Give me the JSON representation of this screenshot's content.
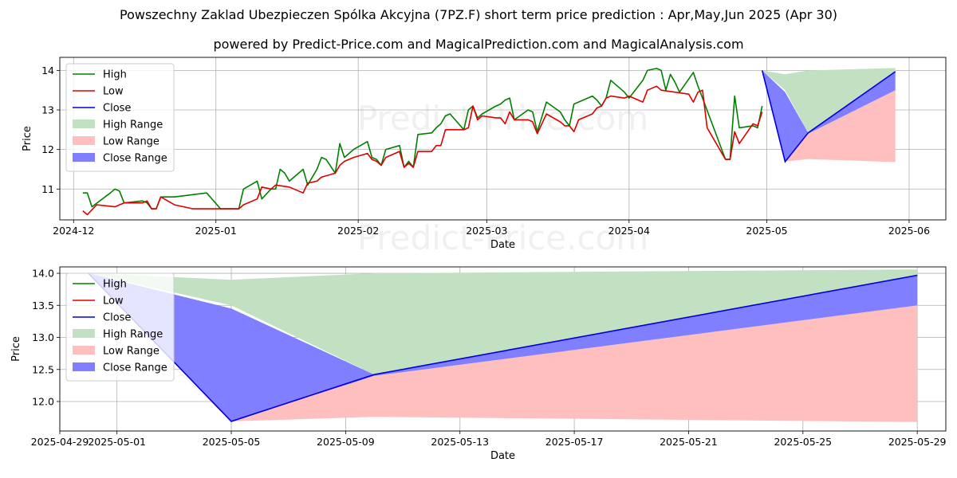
{
  "title": "Powszechny Zaklad Ubezpieczen Spólka Akcyjna (7PZ.F) short term price prediction : Apr,May,Jun 2025 (Apr 30)",
  "subtitle": "powered by Predict-Price.com and MagicalPrediction.com and MagicalAnalysis.com",
  "watermark": "Predict-Price.com",
  "colors": {
    "high": "#008000",
    "low": "#dd0000",
    "close": "#0000dd",
    "high_range": "#c2e0c2",
    "low_range": "#ffbfbf",
    "close_range": "#7f7fff"
  },
  "chart_data": [
    {
      "type": "line",
      "xlabel": "Date",
      "ylabel": "Price",
      "xlim": [
        "2024-11-28",
        "2025-06-09"
      ],
      "ylim": [
        10.22,
        14.33
      ],
      "grid": true,
      "legend_position": "top-left",
      "xticks": [
        "2024-12",
        "2025-01",
        "2025-02",
        "2025-03",
        "2025-04",
        "2025-05",
        "2025-06"
      ],
      "yticks": [
        11,
        12,
        13,
        14
      ],
      "legend": [
        "High",
        "Low",
        "Close",
        "High Range",
        "Low Range",
        "Close Range"
      ],
      "series": [
        {
          "name": "High",
          "points": [
            [
              "2024-12-03",
              10.9
            ],
            [
              "2024-12-04",
              10.9
            ],
            [
              "2024-12-05",
              10.55
            ],
            [
              "2024-12-09",
              10.9
            ],
            [
              "2024-12-10",
              11.0
            ],
            [
              "2024-12-11",
              10.95
            ],
            [
              "2024-12-12",
              10.65
            ],
            [
              "2024-12-16",
              10.7
            ],
            [
              "2024-12-17",
              10.65
            ],
            [
              "2024-12-18",
              10.5
            ],
            [
              "2024-12-19",
              10.5
            ],
            [
              "2024-12-20",
              10.8
            ],
            [
              "2024-12-23",
              10.8
            ],
            [
              "2024-12-30",
              10.9
            ],
            [
              "2025-01-02",
              10.5
            ],
            [
              "2025-01-06",
              10.5
            ],
            [
              "2025-01-07",
              11.0
            ],
            [
              "2025-01-10",
              11.2
            ],
            [
              "2025-01-11",
              10.75
            ],
            [
              "2025-01-13",
              11.0
            ],
            [
              "2025-01-14",
              11.0
            ],
            [
              "2025-01-15",
              11.5
            ],
            [
              "2025-01-16",
              11.4
            ],
            [
              "2025-01-17",
              11.2
            ],
            [
              "2025-01-20",
              11.5
            ],
            [
              "2025-01-21",
              11.1
            ],
            [
              "2025-01-23",
              11.5
            ],
            [
              "2025-01-24",
              11.8
            ],
            [
              "2025-01-25",
              11.75
            ],
            [
              "2025-01-27",
              11.4
            ],
            [
              "2025-01-28",
              12.15
            ],
            [
              "2025-01-29",
              11.8
            ],
            [
              "2025-01-31",
              12.0
            ],
            [
              "2025-02-03",
              12.2
            ],
            [
              "2025-02-04",
              11.8
            ],
            [
              "2025-02-05",
              11.75
            ],
            [
              "2025-02-06",
              11.6
            ],
            [
              "2025-02-07",
              12.0
            ],
            [
              "2025-02-10",
              12.1
            ],
            [
              "2025-02-11",
              11.55
            ],
            [
              "2025-02-12",
              11.7
            ],
            [
              "2025-02-13",
              11.55
            ],
            [
              "2025-02-14",
              12.38
            ],
            [
              "2025-02-17",
              12.42
            ],
            [
              "2025-02-18",
              12.55
            ],
            [
              "2025-02-19",
              12.65
            ],
            [
              "2025-02-20",
              12.85
            ],
            [
              "2025-02-21",
              12.9
            ],
            [
              "2025-02-24",
              12.5
            ],
            [
              "2025-02-25",
              13.0
            ],
            [
              "2025-02-26",
              13.1
            ],
            [
              "2025-02-27",
              12.8
            ],
            [
              "2025-02-28",
              12.9
            ],
            [
              "2025-03-03",
              13.1
            ],
            [
              "2025-03-04",
              13.15
            ],
            [
              "2025-03-05",
              13.25
            ],
            [
              "2025-03-06",
              13.3
            ],
            [
              "2025-03-07",
              12.75
            ],
            [
              "2025-03-10",
              13.0
            ],
            [
              "2025-03-11",
              12.95
            ],
            [
              "2025-03-12",
              12.45
            ],
            [
              "2025-03-14",
              13.2
            ],
            [
              "2025-03-17",
              12.95
            ],
            [
              "2025-03-18",
              12.75
            ],
            [
              "2025-03-19",
              12.6
            ],
            [
              "2025-03-20",
              13.15
            ],
            [
              "2025-03-21",
              13.2
            ],
            [
              "2025-03-24",
              13.35
            ],
            [
              "2025-03-25",
              13.25
            ],
            [
              "2025-03-26",
              13.1
            ],
            [
              "2025-03-27",
              13.3
            ],
            [
              "2025-03-28",
              13.75
            ],
            [
              "2025-03-31",
              13.45
            ],
            [
              "2025-04-01",
              13.3
            ],
            [
              "2025-04-03",
              13.6
            ],
            [
              "2025-04-04",
              13.75
            ],
            [
              "2025-04-05",
              14.0
            ],
            [
              "2025-04-07",
              14.05
            ],
            [
              "2025-04-08",
              14.0
            ],
            [
              "2025-04-09",
              13.5
            ],
            [
              "2025-04-10",
              13.9
            ],
            [
              "2025-04-11",
              13.7
            ],
            [
              "2025-04-12",
              13.45
            ],
            [
              "2025-04-15",
              13.95
            ],
            [
              "2025-04-16",
              13.6
            ],
            [
              "2025-04-17",
              13.3
            ],
            [
              "2025-04-22",
              11.75
            ],
            [
              "2025-04-23",
              11.75
            ],
            [
              "2025-04-24",
              13.35
            ],
            [
              "2025-04-25",
              12.55
            ],
            [
              "2025-04-28",
              12.6
            ],
            [
              "2025-04-29",
              12.55
            ],
            [
              "2025-04-30",
              13.1
            ]
          ]
        },
        {
          "name": "Low",
          "points": [
            [
              "2024-12-03",
              10.45
            ],
            [
              "2024-12-04",
              10.35
            ],
            [
              "2024-12-06",
              10.6
            ],
            [
              "2024-12-10",
              10.55
            ],
            [
              "2024-12-11",
              10.6
            ],
            [
              "2024-12-12",
              10.65
            ],
            [
              "2024-12-16",
              10.65
            ],
            [
              "2024-12-17",
              10.7
            ],
            [
              "2024-12-18",
              10.5
            ],
            [
              "2024-12-19",
              10.5
            ],
            [
              "2024-12-20",
              10.8
            ],
            [
              "2024-12-23",
              10.6
            ],
            [
              "2024-12-27",
              10.5
            ],
            [
              "2025-01-02",
              10.5
            ],
            [
              "2025-01-06",
              10.5
            ],
            [
              "2025-01-07",
              10.6
            ],
            [
              "2025-01-10",
              10.75
            ],
            [
              "2025-01-11",
              11.05
            ],
            [
              "2025-01-13",
              11.0
            ],
            [
              "2025-01-14",
              11.1
            ],
            [
              "2025-01-17",
              11.05
            ],
            [
              "2025-01-20",
              10.9
            ],
            [
              "2025-01-21",
              11.15
            ],
            [
              "2025-01-23",
              11.2
            ],
            [
              "2025-01-24",
              11.3
            ],
            [
              "2025-01-27",
              11.4
            ],
            [
              "2025-01-28",
              11.6
            ],
            [
              "2025-01-29",
              11.7
            ],
            [
              "2025-01-31",
              11.8
            ],
            [
              "2025-02-03",
              11.9
            ],
            [
              "2025-02-04",
              11.75
            ],
            [
              "2025-02-05",
              11.7
            ],
            [
              "2025-02-06",
              11.6
            ],
            [
              "2025-02-07",
              11.8
            ],
            [
              "2025-02-10",
              11.95
            ],
            [
              "2025-02-11",
              11.55
            ],
            [
              "2025-02-12",
              11.65
            ],
            [
              "2025-02-13",
              11.55
            ],
            [
              "2025-02-14",
              11.95
            ],
            [
              "2025-02-17",
              11.95
            ],
            [
              "2025-02-18",
              12.1
            ],
            [
              "2025-02-19",
              12.1
            ],
            [
              "2025-02-20",
              12.5
            ],
            [
              "2025-02-24",
              12.5
            ],
            [
              "2025-02-25",
              12.55
            ],
            [
              "2025-02-26",
              13.1
            ],
            [
              "2025-02-27",
              12.75
            ],
            [
              "2025-02-28",
              12.85
            ],
            [
              "2025-03-03",
              12.8
            ],
            [
              "2025-03-04",
              12.8
            ],
            [
              "2025-03-05",
              12.65
            ],
            [
              "2025-03-06",
              12.95
            ],
            [
              "2025-03-07",
              12.75
            ],
            [
              "2025-03-10",
              12.75
            ],
            [
              "2025-03-11",
              12.7
            ],
            [
              "2025-03-12",
              12.4
            ],
            [
              "2025-03-14",
              12.9
            ],
            [
              "2025-03-17",
              12.7
            ],
            [
              "2025-03-18",
              12.6
            ],
            [
              "2025-03-19",
              12.6
            ],
            [
              "2025-03-20",
              12.45
            ],
            [
              "2025-03-21",
              12.75
            ],
            [
              "2025-03-24",
              12.9
            ],
            [
              "2025-03-25",
              13.05
            ],
            [
              "2025-03-26",
              13.1
            ],
            [
              "2025-03-27",
              13.3
            ],
            [
              "2025-03-28",
              13.35
            ],
            [
              "2025-03-31",
              13.3
            ],
            [
              "2025-04-01",
              13.35
            ],
            [
              "2025-04-03",
              13.25
            ],
            [
              "2025-04-04",
              13.2
            ],
            [
              "2025-04-05",
              13.5
            ],
            [
              "2025-04-07",
              13.6
            ],
            [
              "2025-04-08",
              13.5
            ],
            [
              "2025-04-11",
              13.45
            ],
            [
              "2025-04-14",
              13.4
            ],
            [
              "2025-04-15",
              13.2
            ],
            [
              "2025-04-16",
              13.45
            ],
            [
              "2025-04-17",
              13.5
            ],
            [
              "2025-04-18",
              12.55
            ],
            [
              "2025-04-22",
              11.75
            ],
            [
              "2025-04-23",
              11.75
            ],
            [
              "2025-04-24",
              12.45
            ],
            [
              "2025-04-25",
              12.15
            ],
            [
              "2025-04-28",
              12.65
            ],
            [
              "2025-04-29",
              12.6
            ],
            [
              "2025-04-30",
              12.95
            ]
          ]
        }
      ]
    },
    {
      "type": "area",
      "xlabel": "Date",
      "ylabel": "Price",
      "xlim": [
        "2025-04-29",
        "2025-05-30"
      ],
      "ylim": [
        11.54,
        14.1
      ],
      "grid": true,
      "legend_position": "top-left",
      "xticks": [
        "2025-04-29",
        "2025-05-01",
        "2025-05-05",
        "2025-05-09",
        "2025-05-13",
        "2025-05-17",
        "2025-05-21",
        "2025-05-25",
        "2025-05-29"
      ],
      "yticks": [
        12.0,
        12.5,
        13.0,
        13.5,
        14.0
      ],
      "legend": [
        "High",
        "Low",
        "Close",
        "High Range",
        "Low Range",
        "Close Range"
      ],
      "x": [
        "2025-04-30",
        "2025-05-05",
        "2025-05-10",
        "2025-05-29"
      ],
      "series": [
        {
          "name": "High Range",
          "upper": [
            14.0,
            13.9,
            14.0,
            14.06
          ],
          "lower": [
            14.0,
            13.5,
            12.42,
            13.97
          ]
        },
        {
          "name": "Low Range",
          "upper": [
            13.8,
            11.7,
            12.4,
            13.5
          ],
          "lower": [
            13.8,
            11.69,
            11.76,
            11.68
          ]
        },
        {
          "name": "Close Range",
          "upper": [
            14.0,
            13.45,
            12.42,
            13.97
          ],
          "lower": [
            14.0,
            11.69,
            12.4,
            13.5
          ]
        },
        {
          "name": "Close",
          "values": [
            14.0,
            11.69,
            12.42,
            13.97
          ]
        }
      ]
    }
  ]
}
